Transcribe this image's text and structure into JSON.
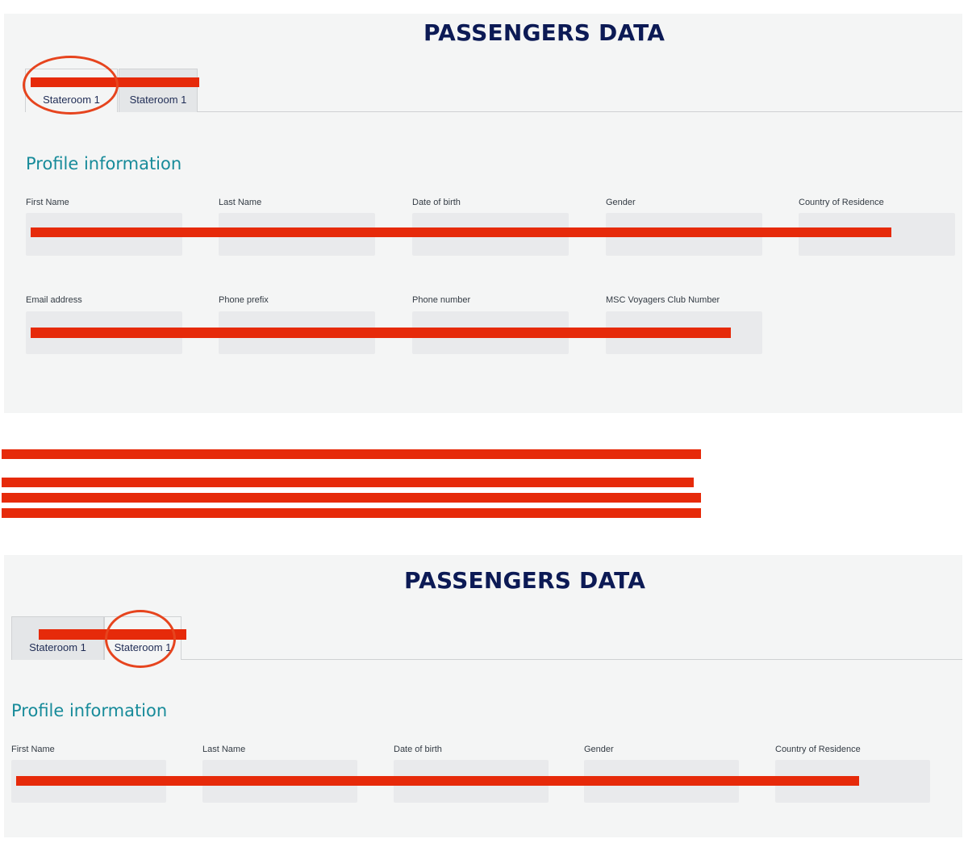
{
  "panel_top": {
    "title": "PASSENGERS DATA",
    "tabs": [
      {
        "name": "",
        "sub": "Stateroom 1",
        "active": true
      },
      {
        "name": "",
        "sub": "Stateroom 1",
        "active": false
      }
    ],
    "section_title": "Profile information",
    "row1": [
      {
        "label": "First Name",
        "value": ""
      },
      {
        "label": "Last Name",
        "value": ""
      },
      {
        "label": "Date of birth",
        "value": ""
      },
      {
        "label": "Gender",
        "value": ""
      },
      {
        "label": "Country of Residence",
        "value": ""
      }
    ],
    "row2": [
      {
        "label": "Email address",
        "value": ""
      },
      {
        "label": "Phone prefix",
        "value": ""
      },
      {
        "label": "Phone number",
        "value": ""
      },
      {
        "label": "MSC Voyagers Club Number",
        "value": ""
      }
    ]
  },
  "notes": {
    "line1": "",
    "line2_prefix": "",
    "line2_link": "",
    "line3": "",
    "line4": ""
  },
  "panel_bottom": {
    "title": "PASSENGERS DATA",
    "tabs": [
      {
        "name": "",
        "sub": "Stateroom 1",
        "active": false
      },
      {
        "name": "",
        "sub": "Stateroom 1",
        "active": true
      }
    ],
    "section_title": "Profile information",
    "row1": [
      {
        "label": "First Name",
        "value": ""
      },
      {
        "label": "Last Name",
        "value": ""
      },
      {
        "label": "Date of birth",
        "value": ""
      },
      {
        "label": "Gender",
        "value": ""
      },
      {
        "label": "Country of Residence",
        "value": ""
      }
    ]
  },
  "colors": {
    "title": "#0c1a55",
    "section_title": "#178b9a",
    "redaction": "#e62a0a",
    "annotation_circle": "#e6441e",
    "panel_bg": "#f4f5f5",
    "field_bg": "#e9eaec"
  }
}
